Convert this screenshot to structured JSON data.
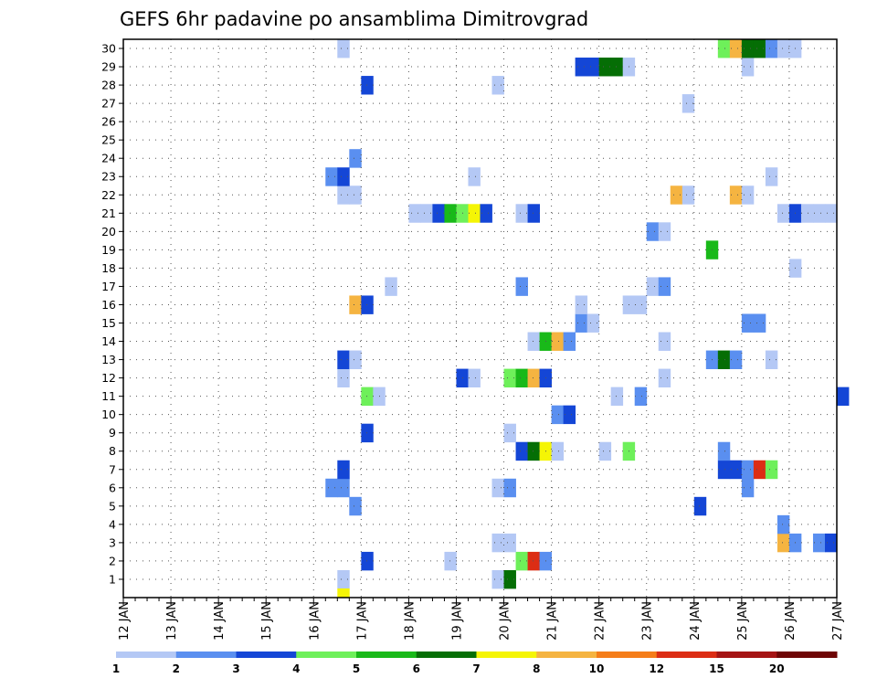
{
  "chart_data": {
    "type": "heatmap",
    "title": "GEFS 6hr padavine po ansamblima Dimitrovgrad",
    "x_ticks": [
      "12 JAN",
      "13 JAN",
      "14 JAN",
      "15 JAN",
      "16 JAN",
      "17 JAN",
      "18 JAN",
      "19 JAN",
      "20 JAN",
      "21 JAN",
      "22 JAN",
      "23 JAN",
      "24 JAN",
      "25 JAN",
      "26 JAN",
      "27 JAN"
    ],
    "y_ticks": [
      "1",
      "2",
      "3",
      "4",
      "5",
      "6",
      "7",
      "8",
      "9",
      "10",
      "11",
      "12",
      "13",
      "14",
      "15",
      "16",
      "17",
      "18",
      "19",
      "20",
      "21",
      "22",
      "23",
      "24",
      "25",
      "26",
      "27",
      "28",
      "29",
      "30"
    ],
    "steps_per_day": 4,
    "grid": true,
    "legend": {
      "placement": "bottom",
      "labels": [
        "1",
        "2",
        "3",
        "4",
        "5",
        "6",
        "7",
        "8",
        "10",
        "12",
        "15",
        "20"
      ],
      "colors": [
        "#b4c8f5",
        "#5a8ff0",
        "#1446d6",
        "#6ef05a",
        "#19b919",
        "#056e05",
        "#f5f505",
        "#f5b441",
        "#f57d19",
        "#dc2d14",
        "#a51414",
        "#6e0505"
      ]
    },
    "cells": [
      {
        "member": 1,
        "step": 18,
        "color": "#b4c8f5"
      },
      {
        "member": 1,
        "step": 31,
        "color": "#b4c8f5"
      },
      {
        "member": 1,
        "step": 32,
        "color": "#056e05"
      },
      {
        "member": 0,
        "step": 18,
        "color": "#f5f505"
      },
      {
        "member": 2,
        "step": 20,
        "color": "#1446d6"
      },
      {
        "member": 2,
        "step": 27,
        "color": "#b4c8f5"
      },
      {
        "member": 2,
        "step": 33,
        "color": "#6ef05a"
      },
      {
        "member": 2,
        "step": 34,
        "color": "#dc2d14"
      },
      {
        "member": 2,
        "step": 35,
        "color": "#5a8ff0"
      },
      {
        "member": 3,
        "step": 31,
        "color": "#b4c8f5"
      },
      {
        "member": 3,
        "step": 32,
        "color": "#b4c8f5"
      },
      {
        "member": 3,
        "step": 55,
        "color": "#f5b441"
      },
      {
        "member": 3,
        "step": 56,
        "color": "#5a8ff0"
      },
      {
        "member": 3,
        "step": 58,
        "color": "#5a8ff0"
      },
      {
        "member": 3,
        "step": 59,
        "color": "#1446d6"
      },
      {
        "member": 4,
        "step": 55,
        "color": "#5a8ff0"
      },
      {
        "member": 5,
        "step": 19,
        "color": "#5a8ff0"
      },
      {
        "member": 5,
        "step": 48,
        "color": "#1446d6"
      },
      {
        "member": 6,
        "step": 17,
        "color": "#5a8ff0"
      },
      {
        "member": 6,
        "step": 18,
        "color": "#5a8ff0"
      },
      {
        "member": 6,
        "step": 31,
        "color": "#b4c8f5"
      },
      {
        "member": 6,
        "step": 32,
        "color": "#5a8ff0"
      },
      {
        "member": 6,
        "step": 52,
        "color": "#5a8ff0"
      },
      {
        "member": 7,
        "step": 18,
        "color": "#1446d6"
      },
      {
        "member": 7,
        "step": 50,
        "color": "#1446d6"
      },
      {
        "member": 7,
        "step": 51,
        "color": "#1446d6"
      },
      {
        "member": 7,
        "step": 52,
        "color": "#5a8ff0"
      },
      {
        "member": 7,
        "step": 53,
        "color": "#dc2d14"
      },
      {
        "member": 7,
        "step": 54,
        "color": "#6ef05a"
      },
      {
        "member": 8,
        "step": 33,
        "color": "#1446d6"
      },
      {
        "member": 8,
        "step": 34,
        "color": "#056e05"
      },
      {
        "member": 8,
        "step": 35,
        "color": "#f5f505"
      },
      {
        "member": 8,
        "step": 36,
        "color": "#b4c8f5"
      },
      {
        "member": 8,
        "step": 40,
        "color": "#b4c8f5"
      },
      {
        "member": 8,
        "step": 42,
        "color": "#6ef05a"
      },
      {
        "member": 8,
        "step": 50,
        "color": "#5a8ff0"
      },
      {
        "member": 9,
        "step": 20,
        "color": "#1446d6"
      },
      {
        "member": 9,
        "step": 32,
        "color": "#b4c8f5"
      },
      {
        "member": 10,
        "step": 36,
        "color": "#5a8ff0"
      },
      {
        "member": 10,
        "step": 37,
        "color": "#1446d6"
      },
      {
        "member": 11,
        "step": 20,
        "color": "#6ef05a"
      },
      {
        "member": 11,
        "step": 21,
        "color": "#b4c8f5"
      },
      {
        "member": 11,
        "step": 41,
        "color": "#b4c8f5"
      },
      {
        "member": 11,
        "step": 43,
        "color": "#5a8ff0"
      },
      {
        "member": 11,
        "step": 60,
        "color": "#1446d6"
      },
      {
        "member": 12,
        "step": 18,
        "color": "#b4c8f5"
      },
      {
        "member": 12,
        "step": 28,
        "color": "#1446d6"
      },
      {
        "member": 12,
        "step": 29,
        "color": "#b4c8f5"
      },
      {
        "member": 12,
        "step": 32,
        "color": "#6ef05a"
      },
      {
        "member": 12,
        "step": 33,
        "color": "#19b919"
      },
      {
        "member": 12,
        "step": 34,
        "color": "#f5b441"
      },
      {
        "member": 12,
        "step": 35,
        "color": "#1446d6"
      },
      {
        "member": 12,
        "step": 45,
        "color": "#b4c8f5"
      },
      {
        "member": 13,
        "step": 18,
        "color": "#1446d6"
      },
      {
        "member": 13,
        "step": 19,
        "color": "#b4c8f5"
      },
      {
        "member": 13,
        "step": 49,
        "color": "#5a8ff0"
      },
      {
        "member": 13,
        "step": 50,
        "color": "#056e05"
      },
      {
        "member": 13,
        "step": 51,
        "color": "#5a8ff0"
      },
      {
        "member": 13,
        "step": 54,
        "color": "#b4c8f5"
      },
      {
        "member": 14,
        "step": 34,
        "color": "#b4c8f5"
      },
      {
        "member": 14,
        "step": 35,
        "color": "#19b919"
      },
      {
        "member": 14,
        "step": 36,
        "color": "#f5b441"
      },
      {
        "member": 14,
        "step": 37,
        "color": "#5a8ff0"
      },
      {
        "member": 14,
        "step": 45,
        "color": "#b4c8f5"
      },
      {
        "member": 15,
        "step": 38,
        "color": "#5a8ff0"
      },
      {
        "member": 15,
        "step": 39,
        "color": "#b4c8f5"
      },
      {
        "member": 15,
        "step": 52,
        "color": "#5a8ff0"
      },
      {
        "member": 15,
        "step": 53,
        "color": "#5a8ff0"
      },
      {
        "member": 16,
        "step": 19,
        "color": "#f5b441"
      },
      {
        "member": 16,
        "step": 20,
        "color": "#1446d6"
      },
      {
        "member": 16,
        "step": 38,
        "color": "#b4c8f5"
      },
      {
        "member": 16,
        "step": 42,
        "color": "#b4c8f5"
      },
      {
        "member": 16,
        "step": 43,
        "color": "#b4c8f5"
      },
      {
        "member": 17,
        "step": 22,
        "color": "#b4c8f5"
      },
      {
        "member": 17,
        "step": 33,
        "color": "#5a8ff0"
      },
      {
        "member": 17,
        "step": 44,
        "color": "#b4c8f5"
      },
      {
        "member": 17,
        "step": 45,
        "color": "#5a8ff0"
      },
      {
        "member": 18,
        "step": 56,
        "color": "#b4c8f5"
      },
      {
        "member": 19,
        "step": 49,
        "color": "#19b919"
      },
      {
        "member": 20,
        "step": 44,
        "color": "#5a8ff0"
      },
      {
        "member": 20,
        "step": 45,
        "color": "#b4c8f5"
      },
      {
        "member": 21,
        "step": 24,
        "color": "#b4c8f5"
      },
      {
        "member": 21,
        "step": 25,
        "color": "#b4c8f5"
      },
      {
        "member": 21,
        "step": 26,
        "color": "#1446d6"
      },
      {
        "member": 21,
        "step": 27,
        "color": "#19b919"
      },
      {
        "member": 21,
        "step": 28,
        "color": "#6ef05a"
      },
      {
        "member": 21,
        "step": 29,
        "color": "#f5f505"
      },
      {
        "member": 21,
        "step": 30,
        "color": "#1446d6"
      },
      {
        "member": 21,
        "step": 33,
        "color": "#b4c8f5"
      },
      {
        "member": 21,
        "step": 34,
        "color": "#1446d6"
      },
      {
        "member": 21,
        "step": 55,
        "color": "#b4c8f5"
      },
      {
        "member": 21,
        "step": 56,
        "color": "#1446d6"
      },
      {
        "member": 21,
        "step": 57,
        "color": "#b4c8f5"
      },
      {
        "member": 21,
        "step": 58,
        "color": "#b4c8f5"
      },
      {
        "member": 21,
        "step": 59,
        "color": "#b4c8f5"
      },
      {
        "member": 22,
        "step": 18,
        "color": "#b4c8f5"
      },
      {
        "member": 22,
        "step": 19,
        "color": "#b4c8f5"
      },
      {
        "member": 22,
        "step": 46,
        "color": "#f5b441"
      },
      {
        "member": 22,
        "step": 47,
        "color": "#b4c8f5"
      },
      {
        "member": 22,
        "step": 51,
        "color": "#f5b441"
      },
      {
        "member": 22,
        "step": 52,
        "color": "#b4c8f5"
      },
      {
        "member": 23,
        "step": 17,
        "color": "#5a8ff0"
      },
      {
        "member": 23,
        "step": 18,
        "color": "#1446d6"
      },
      {
        "member": 23,
        "step": 29,
        "color": "#b4c8f5"
      },
      {
        "member": 23,
        "step": 54,
        "color": "#b4c8f5"
      },
      {
        "member": 24,
        "step": 19,
        "color": "#5a8ff0"
      },
      {
        "member": 27,
        "step": 47,
        "color": "#b4c8f5"
      },
      {
        "member": 28,
        "step": 20,
        "color": "#1446d6"
      },
      {
        "member": 28,
        "step": 31,
        "color": "#b4c8f5"
      },
      {
        "member": 29,
        "step": 38,
        "color": "#1446d6"
      },
      {
        "member": 29,
        "step": 39,
        "color": "#1446d6"
      },
      {
        "member": 29,
        "step": 40,
        "color": "#056e05"
      },
      {
        "member": 29,
        "step": 41,
        "color": "#056e05"
      },
      {
        "member": 29,
        "step": 42,
        "color": "#b4c8f5"
      },
      {
        "member": 29,
        "step": 52,
        "color": "#b4c8f5"
      },
      {
        "member": 30,
        "step": 18,
        "color": "#b4c8f5"
      },
      {
        "member": 30,
        "step": 50,
        "color": "#6ef05a"
      },
      {
        "member": 30,
        "step": 51,
        "color": "#f5b441"
      },
      {
        "member": 30,
        "step": 52,
        "color": "#056e05"
      },
      {
        "member": 30,
        "step": 53,
        "color": "#056e05"
      },
      {
        "member": 30,
        "step": 54,
        "color": "#5a8ff0"
      },
      {
        "member": 30,
        "step": 55,
        "color": "#b4c8f5"
      },
      {
        "member": 30,
        "step": 56,
        "color": "#b4c8f5"
      }
    ]
  }
}
